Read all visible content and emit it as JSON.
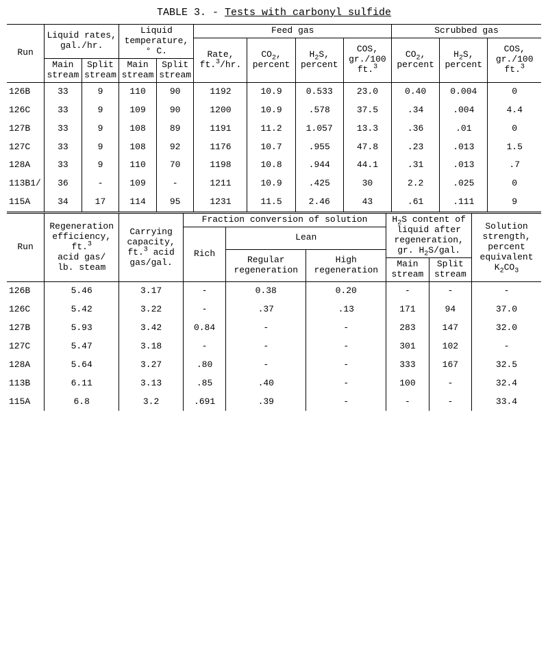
{
  "title_prefix": "TABLE 3. - ",
  "title_underlined": "Tests with carbonyl sulfide",
  "top": {
    "group_labels": {
      "liquid_rates": "Liquid rates, gal./hr.",
      "liquid_temp": "Liquid temperature, ° C.",
      "feed_gas": "Feed gas",
      "scrubbed_gas": "Scrubbed gas"
    },
    "col_labels": {
      "run": "Run",
      "lr_main": "Main stream",
      "lr_split": "Split stream",
      "lt_main": "Main stream",
      "lt_split": "Split stream",
      "rate": "Rate, ft.3/hr.",
      "co2": "CO2, percent",
      "h2s": "H2S, percent",
      "cos": "COS, gr./100 ft.3",
      "s_co2": "CO2, percent",
      "s_h2s": "H2S, percent",
      "s_cos": "COS, gr./100 ft.3"
    },
    "rows": [
      {
        "run": "126B",
        "lr_main": "33",
        "lr_split": "9",
        "lt_main": "110",
        "lt_split": "90",
        "rate": "1192",
        "co2": "10.9",
        "h2s": "0.533",
        "cos": "23.0",
        "s_co2": "0.40",
        "s_h2s": "0.004",
        "s_cos": "0"
      },
      {
        "run": "126C",
        "lr_main": "33",
        "lr_split": "9",
        "lt_main": "109",
        "lt_split": "90",
        "rate": "1200",
        "co2": "10.9",
        "h2s": ".578",
        "cos": "37.5",
        "s_co2": ".34",
        "s_h2s": ".004",
        "s_cos": "4.4"
      },
      {
        "run": "127B",
        "lr_main": "33",
        "lr_split": "9",
        "lt_main": "108",
        "lt_split": "89",
        "rate": "1191",
        "co2": "11.2",
        "h2s": "1.057",
        "cos": "13.3",
        "s_co2": ".36",
        "s_h2s": ".01",
        "s_cos": "0"
      },
      {
        "run": "127C",
        "lr_main": "33",
        "lr_split": "9",
        "lt_main": "108",
        "lt_split": "92",
        "rate": "1176",
        "co2": "10.7",
        "h2s": ".955",
        "cos": "47.8",
        "s_co2": ".23",
        "s_h2s": ".013",
        "s_cos": "1.5"
      },
      {
        "run": "128A",
        "lr_main": "33",
        "lr_split": "9",
        "lt_main": "110",
        "lt_split": "70",
        "rate": "1198",
        "co2": "10.8",
        "h2s": ".944",
        "cos": "44.1",
        "s_co2": ".31",
        "s_h2s": ".013",
        "s_cos": ".7"
      },
      {
        "run": "113B1/",
        "lr_main": "36",
        "lr_split": "-",
        "lt_main": "109",
        "lt_split": "-",
        "rate": "1211",
        "co2": "10.9",
        "h2s": ".425",
        "cos": "30",
        "s_co2": "2.2",
        "s_h2s": ".025",
        "s_cos": "0"
      },
      {
        "run": "115A",
        "lr_main": "34",
        "lr_split": "17",
        "lt_main": "114",
        "lt_split": "95",
        "rate": "1231",
        "co2": "11.5",
        "h2s": "2.46",
        "cos": "43",
        "s_co2": ".61",
        "s_h2s": ".111",
        "s_cos": "9"
      }
    ]
  },
  "bottom": {
    "group_labels": {
      "regen_eff": "Regeneration efficiency, ft.3 acid gas/ lb. steam",
      "carry_cap": "Carrying capacity, ft.3 acid gas/gal.",
      "fraction_conv": "Fraction conversion of solution",
      "lean": "Lean",
      "h2s_content": "H2S content of liquid after regeneration, gr. H2S/gal.",
      "sol_strength": "Solution strength, percent equivalent K2CO3"
    },
    "col_labels": {
      "run": "Run",
      "rich": "Rich",
      "regular": "Regular regeneration",
      "high": "High regeneration",
      "main": "Main stream",
      "split": "Split stream"
    },
    "rows": [
      {
        "run": "126B",
        "regen": "5.46",
        "carry": "3.17",
        "rich": "-",
        "regular": "0.38",
        "high": "0.20",
        "main": "-",
        "split": "-",
        "sol": "-"
      },
      {
        "run": "126C",
        "regen": "5.42",
        "carry": "3.22",
        "rich": "-",
        "regular": ".37",
        "high": ".13",
        "main": "171",
        "split": "94",
        "sol": "37.0"
      },
      {
        "run": "127B",
        "regen": "5.93",
        "carry": "3.42",
        "rich": "0.84",
        "regular": "-",
        "high": "-",
        "main": "283",
        "split": "147",
        "sol": "32.0"
      },
      {
        "run": "127C",
        "regen": "5.47",
        "carry": "3.18",
        "rich": "-",
        "regular": "-",
        "high": "-",
        "main": "301",
        "split": "102",
        "sol": "-"
      },
      {
        "run": "128A",
        "regen": "5.64",
        "carry": "3.27",
        "rich": ".80",
        "regular": "-",
        "high": "-",
        "main": "333",
        "split": "167",
        "sol": "32.5"
      },
      {
        "run": "113B",
        "regen": "6.11",
        "carry": "3.13",
        "rich": ".85",
        "regular": ".40",
        "high": "-",
        "main": "100",
        "split": "-",
        "sol": "32.4"
      },
      {
        "run": "115A",
        "regen": "6.8",
        "carry": "3.2",
        "rich": ".691",
        "regular": ".39",
        "high": "-",
        "main": "-",
        "split": "-",
        "sol": "33.4"
      }
    ]
  }
}
